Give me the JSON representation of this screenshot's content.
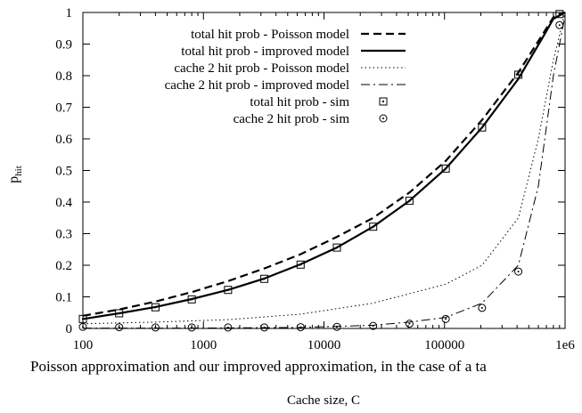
{
  "caption": "Poisson approximation and our improved approximation, in the case of a ta",
  "chart_data": {
    "type": "line",
    "xlabel": "Cache size, C",
    "ylabel_main": "p",
    "ylabel_sub": "hit",
    "xscale": "log",
    "xlim": [
      100,
      1000000
    ],
    "ylim": [
      0,
      1
    ],
    "x_ticks": [
      100,
      1000,
      10000,
      100000,
      1000000
    ],
    "x_tick_labels": [
      "100",
      "1000",
      "10000",
      "100000",
      "1e6"
    ],
    "y_ticks": [
      0,
      0.1,
      0.2,
      0.3,
      0.4,
      0.5,
      0.6,
      0.7,
      0.8,
      0.9,
      1
    ],
    "y_tick_labels": [
      "0",
      "0.1",
      "0.2",
      "0.3",
      "0.4",
      "0.5",
      "0.6",
      "0.7",
      "0.8",
      "0.9",
      "1"
    ],
    "grid": false,
    "legend_position": "top-left",
    "series": [
      {
        "name": "total hit prob  - Poisson model",
        "style": "dashed",
        "points": [
          [
            100,
            0.04
          ],
          [
            200,
            0.06
          ],
          [
            400,
            0.085
          ],
          [
            800,
            0.115
          ],
          [
            1600,
            0.15
          ],
          [
            3200,
            0.19
          ],
          [
            6400,
            0.235
          ],
          [
            12800,
            0.29
          ],
          [
            25600,
            0.35
          ],
          [
            51200,
            0.43
          ],
          [
            102400,
            0.53
          ],
          [
            204800,
            0.66
          ],
          [
            409600,
            0.81
          ],
          [
            650000,
            0.93
          ],
          [
            800000,
            0.985
          ],
          [
            1000000,
            1.0
          ]
        ]
      },
      {
        "name": "total hit prob - improved model",
        "style": "solid",
        "points": [
          [
            100,
            0.03
          ],
          [
            200,
            0.048
          ],
          [
            400,
            0.068
          ],
          [
            800,
            0.093
          ],
          [
            1600,
            0.122
          ],
          [
            3200,
            0.158
          ],
          [
            6400,
            0.203
          ],
          [
            12800,
            0.256
          ],
          [
            25600,
            0.322
          ],
          [
            51200,
            0.404
          ],
          [
            102400,
            0.506
          ],
          [
            204800,
            0.636
          ],
          [
            409600,
            0.79
          ],
          [
            650000,
            0.92
          ],
          [
            800000,
            0.98
          ],
          [
            1000000,
            1.0
          ]
        ]
      },
      {
        "name": "cache 2 hit prob - Poisson model",
        "style": "dotted",
        "points": [
          [
            100,
            0.015
          ],
          [
            400,
            0.02
          ],
          [
            1600,
            0.028
          ],
          [
            6400,
            0.045
          ],
          [
            25600,
            0.08
          ],
          [
            102400,
            0.14
          ],
          [
            204800,
            0.2
          ],
          [
            409600,
            0.35
          ],
          [
            600000,
            0.6
          ],
          [
            800000,
            0.85
          ],
          [
            1000000,
            1.0
          ]
        ]
      },
      {
        "name": "cache 2 hit prob - improved model",
        "style": "dashdot",
        "points": [
          [
            100,
            0.001
          ],
          [
            800,
            0.001
          ],
          [
            6400,
            0.003
          ],
          [
            25600,
            0.01
          ],
          [
            51200,
            0.02
          ],
          [
            102400,
            0.035
          ],
          [
            204800,
            0.08
          ],
          [
            409600,
            0.2
          ],
          [
            600000,
            0.45
          ],
          [
            800000,
            0.8
          ],
          [
            1000000,
            0.99
          ]
        ]
      },
      {
        "name": "total hit prob - sim",
        "style": "square-marker",
        "points": [
          [
            100,
            0.03
          ],
          [
            200,
            0.048
          ],
          [
            400,
            0.067
          ],
          [
            800,
            0.092
          ],
          [
            1600,
            0.122
          ],
          [
            3200,
            0.157
          ],
          [
            6400,
            0.202
          ],
          [
            12800,
            0.256
          ],
          [
            25600,
            0.322
          ],
          [
            51200,
            0.404
          ],
          [
            102400,
            0.506
          ],
          [
            204800,
            0.636
          ],
          [
            409600,
            0.803
          ],
          [
            900000,
            0.995
          ]
        ]
      },
      {
        "name": "cache 2 hit prob - sim",
        "style": "circle-marker",
        "points": [
          [
            100,
            0.005
          ],
          [
            200,
            0.004
          ],
          [
            400,
            0.003
          ],
          [
            800,
            0.003
          ],
          [
            1600,
            0.003
          ],
          [
            3200,
            0.003
          ],
          [
            6400,
            0.004
          ],
          [
            12800,
            0.005
          ],
          [
            25600,
            0.008
          ],
          [
            51200,
            0.015
          ],
          [
            102400,
            0.03
          ],
          [
            204800,
            0.065
          ],
          [
            409600,
            0.18
          ],
          [
            900000,
            0.96
          ]
        ]
      }
    ]
  }
}
